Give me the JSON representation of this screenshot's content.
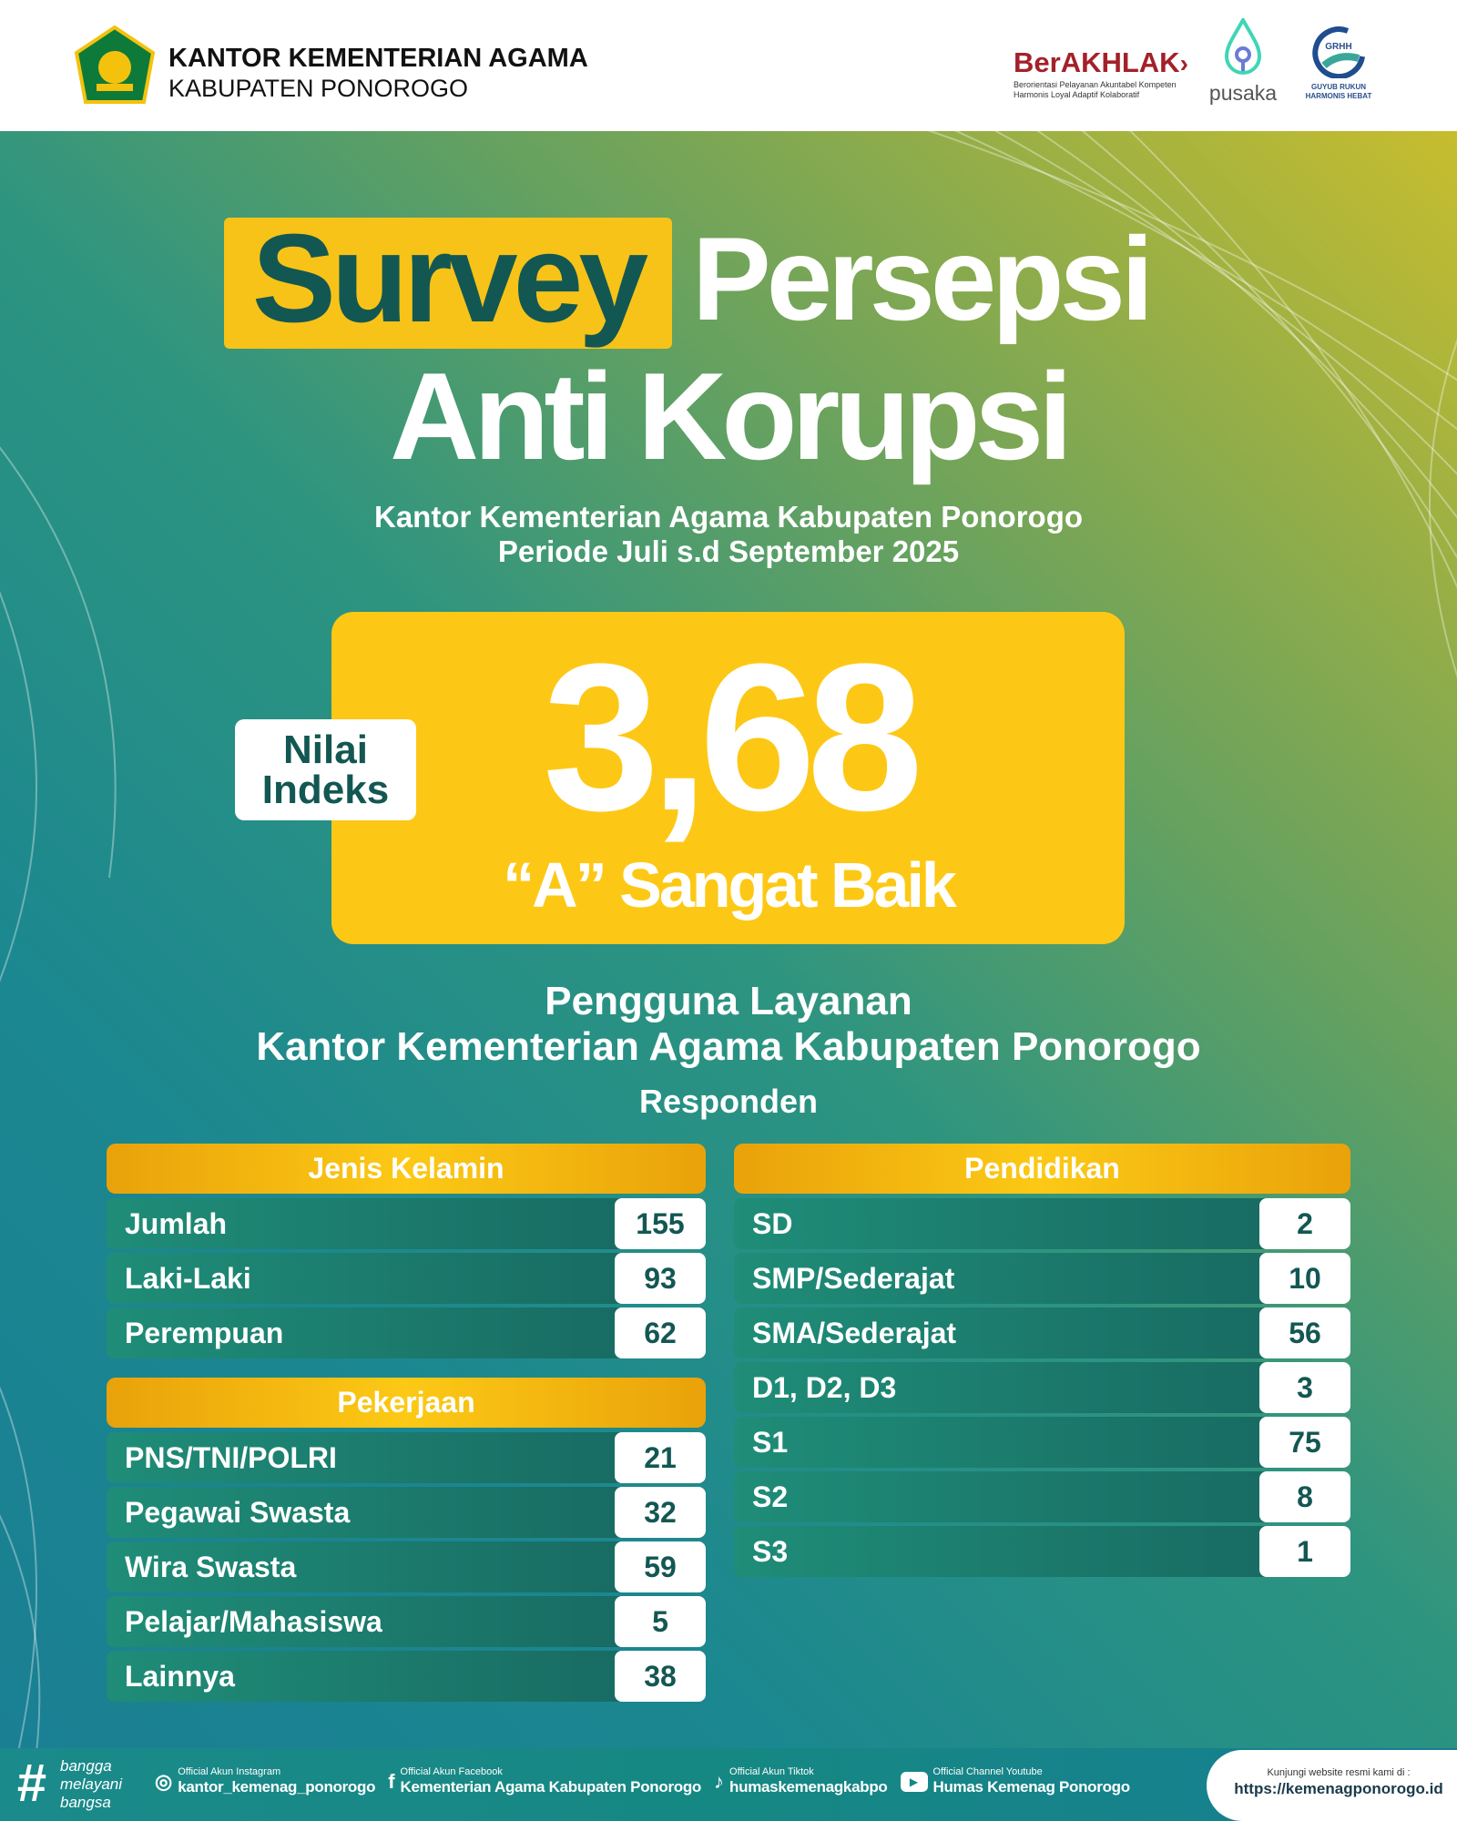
{
  "header": {
    "org_line1": "KANTOR KEMENTERIAN AGAMA",
    "org_line2": "KABUPATEN PONOROGO",
    "emblem_text": "IKHLAS BERAMAL",
    "berakhlak": "BerAKHLAK",
    "berakhlak_sub": "Berorientasi Pelayanan Akuntabel Kompeten Harmonis Loyal Adaptif Kolaboratif",
    "pusaka": "pusaka",
    "grhh": "GRHH",
    "grhh_sub": "GUYUB RUKUN HARMONIS HEBAT"
  },
  "title": {
    "word1": "Survey",
    "word2": "Persepsi",
    "line2": "Anti Korupsi"
  },
  "subtitle": {
    "line1": "Kantor Kementerian Agama Kabupaten Ponorogo",
    "line2": "Periode Juli s.d September 2025"
  },
  "score": {
    "label_line1": "Nilai",
    "label_line2": "Indeks",
    "value": "3,68",
    "grade": "“A” Sangat Baik"
  },
  "section": {
    "line1": "Pengguna Layanan",
    "line2": "Kantor Kementerian Agama Kabupaten Ponorogo",
    "line3": "Responden"
  },
  "jenis_kelamin": {
    "title": "Jenis Kelamin",
    "rows": [
      {
        "label": "Jumlah",
        "value": "155"
      },
      {
        "label": "Laki-Laki",
        "value": "93"
      },
      {
        "label": "Perempuan",
        "value": "62"
      }
    ]
  },
  "pekerjaan": {
    "title": "Pekerjaan",
    "rows": [
      {
        "label": "PNS/TNI/POLRI",
        "value": "21"
      },
      {
        "label": "Pegawai Swasta",
        "value": "32"
      },
      {
        "label": "Wira Swasta",
        "value": "59"
      },
      {
        "label": "Pelajar/Mahasiswa",
        "value": "5"
      },
      {
        "label": "Lainnya",
        "value": "38"
      }
    ]
  },
  "pendidikan": {
    "title": "Pendidikan",
    "rows": [
      {
        "label": "SD",
        "value": "2"
      },
      {
        "label": "SMP/Sederajat",
        "value": "10"
      },
      {
        "label": "SMA/Sederajat",
        "value": "56"
      },
      {
        "label": "D1, D2, D3",
        "value": "3"
      },
      {
        "label": "S1",
        "value": "75"
      },
      {
        "label": "S2",
        "value": "8"
      },
      {
        "label": "S3",
        "value": "1"
      }
    ]
  },
  "footer": {
    "hashtag": [
      "bangga",
      "melayani",
      "bangsa"
    ],
    "instagram": {
      "caption": "Official Akun Instagram",
      "handle": "kantor_kemenag_ponorogo"
    },
    "facebook": {
      "caption": "Official Akun Facebook",
      "handle": "Kementerian Agama Kabupaten Ponorogo"
    },
    "tiktok": {
      "caption": "Official Akun Tiktok",
      "handle": "humaskemenagkabpo"
    },
    "youtube": {
      "caption": "Official Channel Youtube",
      "handle": "Humas Kemenag Ponorogo"
    },
    "website_caption": "Kunjungi website resmi kami di :",
    "website": "https://kemenagponorogo.id"
  },
  "colors": {
    "teal_dark": "#135753",
    "yellow": "#fdc815",
    "teal_bg": "#1a8590",
    "olive": "#c7bd2e"
  }
}
